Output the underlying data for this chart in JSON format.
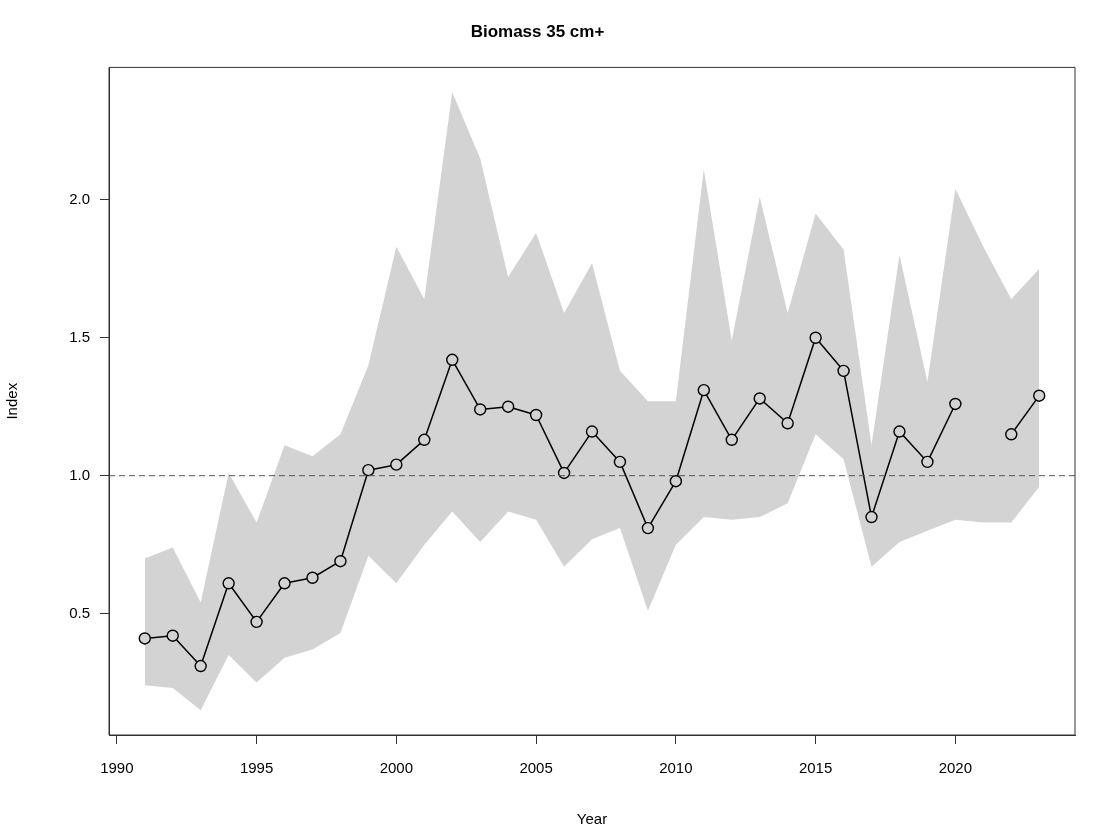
{
  "chart_data": {
    "type": "line",
    "title": "Biomass 35 cm+",
    "xlabel": "Year",
    "ylabel": "Index",
    "x": [
      1991,
      1992,
      1993,
      1994,
      1995,
      1996,
      1997,
      1998,
      1999,
      2000,
      2001,
      2002,
      2003,
      2004,
      2005,
      2006,
      2007,
      2008,
      2009,
      2010,
      2011,
      2012,
      2013,
      2014,
      2015,
      2016,
      2017,
      2018,
      2019,
      2020,
      2021,
      2022,
      2023
    ],
    "series": [
      {
        "color": "#000000",
        "values": [
          0.41,
          0.42,
          0.31,
          0.61,
          0.47,
          0.61,
          0.63,
          0.69,
          1.02,
          1.04,
          1.13,
          1.42,
          1.24,
          1.25,
          1.22,
          1.01,
          1.16,
          1.05,
          0.81,
          0.98,
          1.31,
          1.13,
          1.28,
          1.19,
          1.5,
          1.38,
          0.85,
          1.16,
          1.05,
          1.26,
          null,
          1.15,
          1.29
        ],
        "lower": [
          0.24,
          0.23,
          0.15,
          0.35,
          0.25,
          0.34,
          0.37,
          0.43,
          0.71,
          0.61,
          0.75,
          0.87,
          0.76,
          0.87,
          0.84,
          0.67,
          0.77,
          0.81,
          0.51,
          0.75,
          0.85,
          0.84,
          0.85,
          0.9,
          1.15,
          1.06,
          0.67,
          0.76,
          0.8,
          0.84,
          0.83,
          0.83,
          0.96
        ],
        "upper": [
          0.7,
          0.74,
          0.54,
          1.01,
          0.83,
          1.11,
          1.07,
          1.15,
          1.4,
          1.83,
          1.64,
          2.39,
          2.15,
          1.72,
          1.88,
          1.59,
          1.77,
          1.38,
          1.27,
          1.27,
          2.11,
          1.49,
          2.01,
          1.59,
          1.95,
          1.82,
          1.11,
          1.8,
          1.34,
          2.04,
          1.83,
          1.64,
          1.75
        ]
      }
    ],
    "xlim": [
      1989.72,
      2024.28
    ],
    "xticks": [
      1990,
      1995,
      2000,
      2005,
      2010,
      2015,
      2020
    ],
    "ylim": [
      0.06,
      2.48
    ],
    "yticks": [
      0.5,
      {
        "value": 1,
        "label": "1.0"
      },
      1.5,
      {
        "value": 2,
        "label": "2.0"
      }
    ],
    "ref_lines": [
      {
        "axis": "y",
        "value": 1,
        "color": "#555555",
        "line_style": "dashed"
      }
    ],
    "marker": "circle",
    "line_style": "solid"
  }
}
